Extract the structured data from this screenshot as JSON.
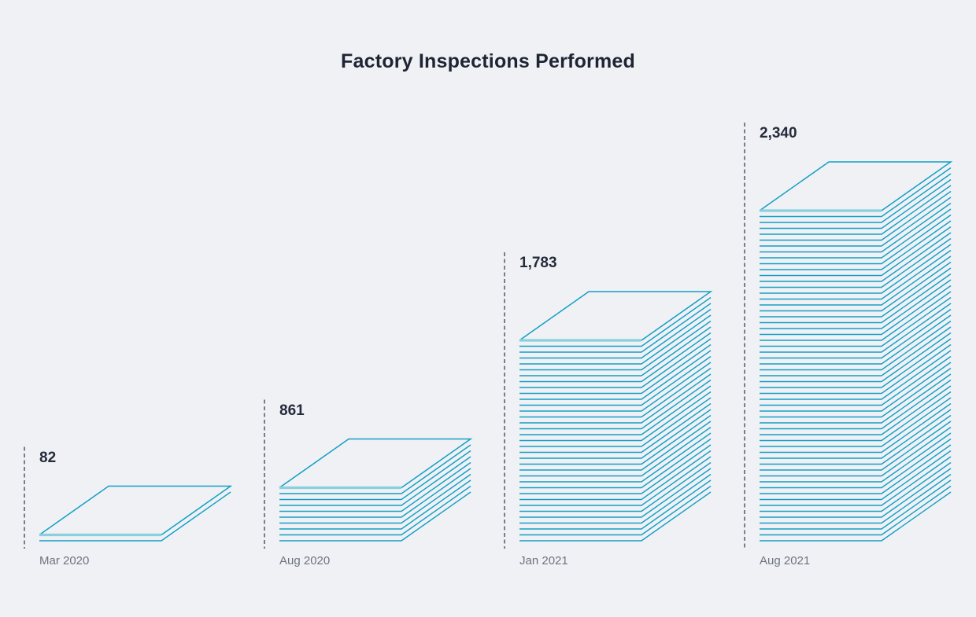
{
  "title": "Factory Inspections Performed",
  "chart_data": {
    "type": "bar",
    "variant": "isometric-stacked-sheets",
    "title": "Factory Inspections Performed",
    "categories": [
      "Mar 2020",
      "Aug 2020",
      "Jan 2021",
      "Aug 2021"
    ],
    "values": [
      82,
      861,
      1783,
      2340
    ],
    "series": [
      {
        "name": "Factory inspections",
        "values": [
          82,
          861,
          1783,
          2340
        ]
      }
    ],
    "items": [
      {
        "label": "Mar 2020",
        "value": 82,
        "value_label": "82",
        "layers": 1
      },
      {
        "label": "Aug 2020",
        "value": 861,
        "value_label": "861",
        "layers": 9
      },
      {
        "label": "Jan 2021",
        "value": 1783,
        "value_label": "1,783",
        "layers": 34
      },
      {
        "label": "Aug 2021",
        "value": 2340,
        "value_label": "2,340",
        "layers": 56
      }
    ],
    "legend": "none",
    "grid": "off",
    "axes": "none",
    "colors": {
      "stack_stroke": "#149FC4",
      "stack_top_edge": "#8BD0DE",
      "dashed_guide": "#5C626E",
      "background": "#EFF1F5",
      "title_text": "#1E2433",
      "value_text": "#252B3B",
      "category_text": "#6E7380"
    }
  }
}
